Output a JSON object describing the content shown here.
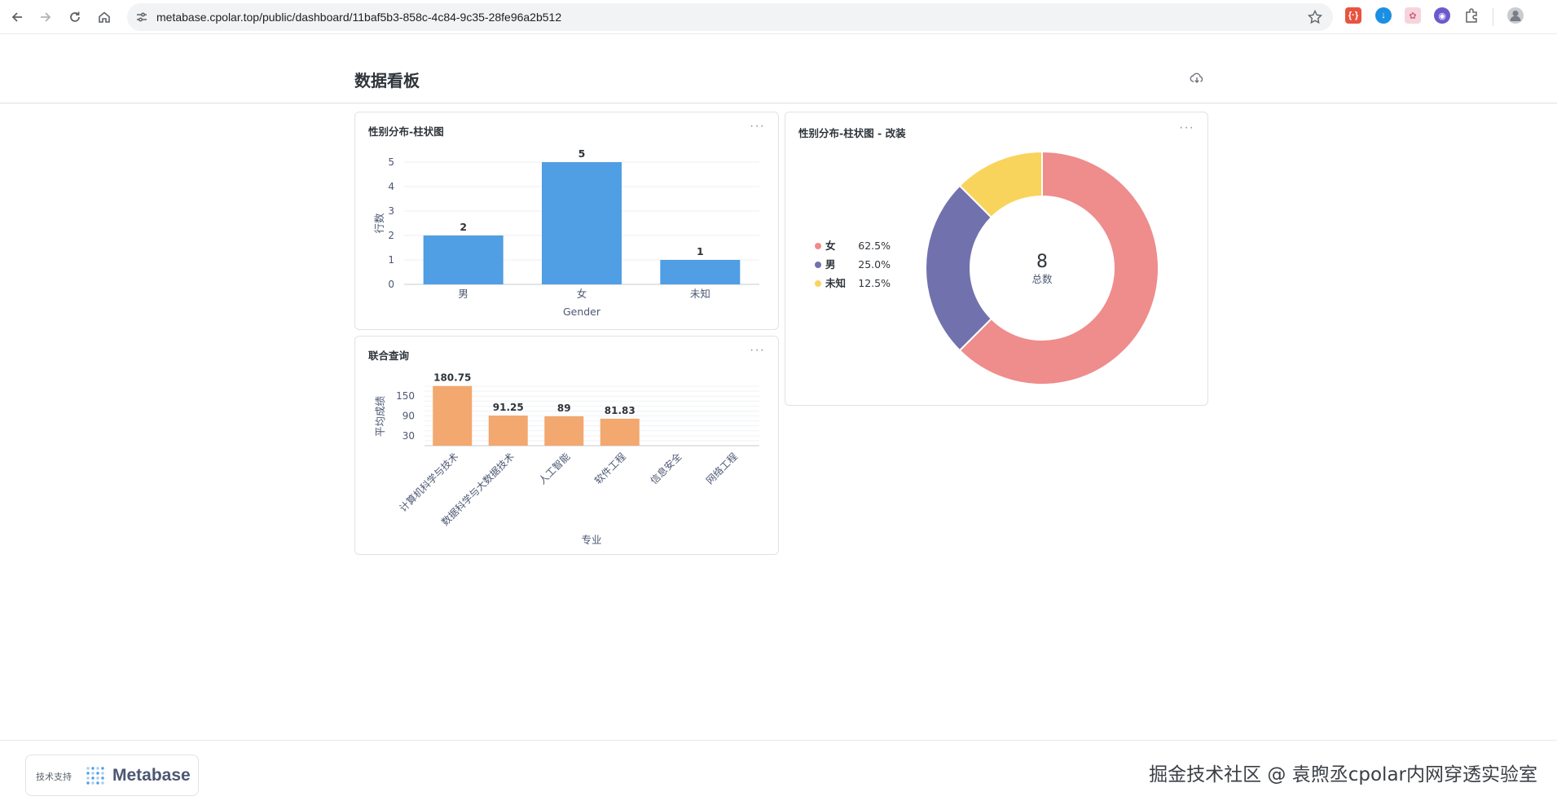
{
  "browser": {
    "url": "metabase.cpolar.top/public/dashboard/11baf5b3-858c-4c84-9c35-28fe96a2b512"
  },
  "dashboard": {
    "title": "数据看板"
  },
  "cards": {
    "gender_bar": {
      "title": "性别分布-柱状图",
      "menu": "···"
    },
    "gender_donut": {
      "title": "性别分布-柱状图 - 改装",
      "menu": "···"
    },
    "joint_query": {
      "title": "联合查询",
      "menu": "···"
    }
  },
  "footer": {
    "powered_by": "技术支持",
    "brand": "Metabase",
    "watermark": "掘金技术社区 @ 袁煦丞cpolar内网穿透实验室"
  },
  "colors": {
    "blue": "#509ee3",
    "orange": "#f2a86f",
    "pink": "#ef8c8c",
    "purple": "#7172ad",
    "yellow": "#f9d45c"
  },
  "chart_data": [
    {
      "type": "bar",
      "categories": [
        "男",
        "女",
        "未知"
      ],
      "values": [
        2,
        5,
        1
      ],
      "xlabel": "Gender",
      "ylabel": "行数",
      "yticks": [
        0,
        1,
        2,
        3,
        4,
        5
      ],
      "ylim": [
        0,
        5
      ]
    },
    {
      "type": "pie",
      "categories": [
        "女",
        "男",
        "未知"
      ],
      "values": [
        5,
        2,
        1
      ],
      "percents": [
        "62.5%",
        "25.0%",
        "12.5%"
      ],
      "total": "8",
      "total_label": "总数",
      "legend": "left"
    },
    {
      "type": "bar",
      "categories": [
        "计算机科学与技术",
        "数据科学与大数据技术",
        "人工智能",
        "软件工程",
        "信息安全",
        "网络工程"
      ],
      "values": [
        180.75,
        91.25,
        89,
        81.83,
        null,
        null
      ],
      "value_labels": [
        "180.75",
        "91.25",
        "89",
        "81.83",
        "",
        ""
      ],
      "xlabel": "专业",
      "ylabel": "平均成绩",
      "yticks": [
        30,
        90,
        150
      ],
      "ylim": [
        0,
        200
      ]
    }
  ]
}
